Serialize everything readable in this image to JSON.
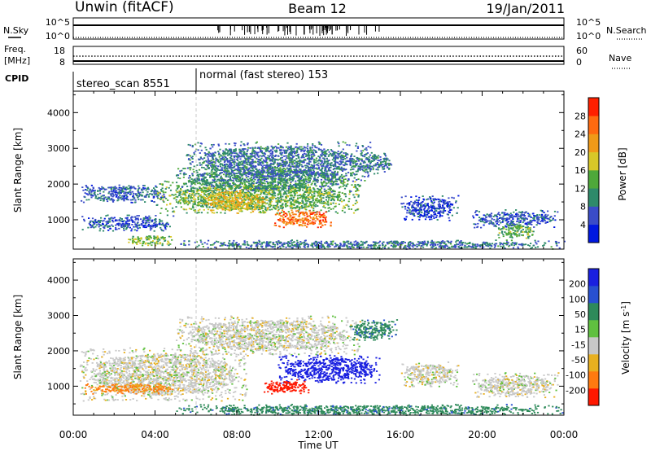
{
  "header": {
    "title_left": "Unwin (fitACF)",
    "title_center": "Beam 12",
    "title_right": "19/Jan/2011"
  },
  "panels": {
    "nsky": {
      "label": "N.Sky",
      "left_ticks": [
        "10^5",
        "10^0"
      ],
      "right_ticks": [
        "10^5",
        "10^0"
      ],
      "right_label": "N.Search"
    },
    "freq": {
      "label_line1": "Freq.",
      "label_line2": "[MHz]",
      "left_ticks": [
        "18",
        "8"
      ],
      "right_ticks": [
        "60",
        "0"
      ],
      "right_label": "Nave"
    },
    "cpid": {
      "label": "CPID",
      "programs": [
        "stereo_scan 8551",
        "normal (fast stereo) 153"
      ]
    }
  },
  "colors": {
    "background": "#ffffff",
    "foreground": "#000000",
    "mode_change_line": "#c8c8c8"
  },
  "chart_data": [
    {
      "type": "heatmap",
      "title": "Power",
      "xlabel": "Time UT",
      "ylabel": "Slant Range [km]",
      "colorbar_label": "Power [dB]",
      "x_ticks": [
        "00:00",
        "04:00",
        "08:00",
        "12:00",
        "16:00",
        "20:00",
        "00:00"
      ],
      "xlim_hours": [
        0,
        24
      ],
      "y_ticks": [
        1000,
        2000,
        3000,
        4000
      ],
      "ylim": [
        180,
        4600
      ],
      "colorbar_ticks": [
        4,
        8,
        12,
        16,
        20,
        24,
        28
      ],
      "colorbar_range": [
        0,
        30
      ],
      "colorbar_colors": [
        "#0018e0",
        "#3a4cc8",
        "#2e8a6a",
        "#4ea83a",
        "#d8c828",
        "#f09a18",
        "#ff6a10",
        "#ff2000"
      ],
      "clusters": [
        {
          "t_start": 0.4,
          "t_end": 5.0,
          "r_min": 700,
          "r_max": 1150,
          "level": 6
        },
        {
          "t_start": 0.3,
          "t_end": 4.5,
          "r_min": 1500,
          "r_max": 2000,
          "level": 7
        },
        {
          "t_start": 4.0,
          "t_end": 14.0,
          "r_min": 1200,
          "r_max": 2100,
          "level": 13
        },
        {
          "t_start": 5.0,
          "t_end": 14.0,
          "r_min": 1800,
          "r_max": 2500,
          "level": 10
        },
        {
          "t_start": 5.5,
          "t_end": 14.5,
          "r_min": 2100,
          "r_max": 3200,
          "level": 8
        },
        {
          "t_start": 13.5,
          "t_end": 15.6,
          "r_min": 2300,
          "r_max": 2900,
          "level": 8
        },
        {
          "t_start": 9.8,
          "t_end": 12.6,
          "r_min": 800,
          "r_max": 1300,
          "level": 24
        },
        {
          "t_start": 6.3,
          "t_end": 9.5,
          "r_min": 1200,
          "r_max": 1900,
          "level": 18
        },
        {
          "t_start": 2.6,
          "t_end": 4.8,
          "r_min": 300,
          "r_max": 600,
          "level": 14
        },
        {
          "t_start": 5.0,
          "t_end": 24.0,
          "r_min": 200,
          "r_max": 450,
          "level": 8
        },
        {
          "t_start": 16.0,
          "t_end": 18.8,
          "r_min": 1000,
          "r_max": 1700,
          "level": 5
        },
        {
          "t_start": 19.5,
          "t_end": 23.7,
          "r_min": 800,
          "r_max": 1300,
          "level": 6
        },
        {
          "t_start": 20.6,
          "t_end": 22.6,
          "r_min": 500,
          "r_max": 900,
          "level": 12
        }
      ]
    },
    {
      "type": "heatmap",
      "title": "Velocity",
      "xlabel": "Time UT",
      "ylabel": "Slant Range [km]",
      "colorbar_label": "Velocity [m s^-1]",
      "x_ticks": [
        "00:00",
        "04:00",
        "08:00",
        "12:00",
        "16:00",
        "20:00",
        "00:00"
      ],
      "xlim_hours": [
        0,
        24
      ],
      "y_ticks": [
        1000,
        2000,
        3000,
        4000
      ],
      "ylim": [
        180,
        4600
      ],
      "colorbar_ticks": [
        200,
        100,
        50,
        15,
        -15,
        -50,
        -100,
        -200
      ],
      "colorbar_colors": [
        "#1a20e0",
        "#2850d0",
        "#2e8a5a",
        "#60c040",
        "#c8c8c8",
        "#e8b020",
        "#ff7a10",
        "#ff1800"
      ],
      "clusters": [
        {
          "t_start": 0.3,
          "t_end": 8.5,
          "r_min": 600,
          "r_max": 2100,
          "velocity": 0
        },
        {
          "t_start": 5.0,
          "t_end": 14.0,
          "r_min": 1900,
          "r_max": 3000,
          "velocity": 0
        },
        {
          "t_start": 13.5,
          "t_end": 15.8,
          "r_min": 2300,
          "r_max": 2900,
          "velocity": 60
        },
        {
          "t_start": 10.0,
          "t_end": 15.0,
          "r_min": 1100,
          "r_max": 1900,
          "velocity": 220
        },
        {
          "t_start": 9.3,
          "t_end": 11.5,
          "r_min": 800,
          "r_max": 1200,
          "velocity": -220
        },
        {
          "t_start": 5.0,
          "t_end": 24.0,
          "r_min": 200,
          "r_max": 500,
          "velocity": 60
        },
        {
          "t_start": 16.0,
          "t_end": 18.8,
          "r_min": 1000,
          "r_max": 1700,
          "velocity": 0
        },
        {
          "t_start": 19.5,
          "t_end": 23.7,
          "r_min": 700,
          "r_max": 1400,
          "velocity": 0
        },
        {
          "t_start": 0.5,
          "t_end": 5.0,
          "r_min": 800,
          "r_max": 1100,
          "velocity": -60
        }
      ]
    }
  ]
}
